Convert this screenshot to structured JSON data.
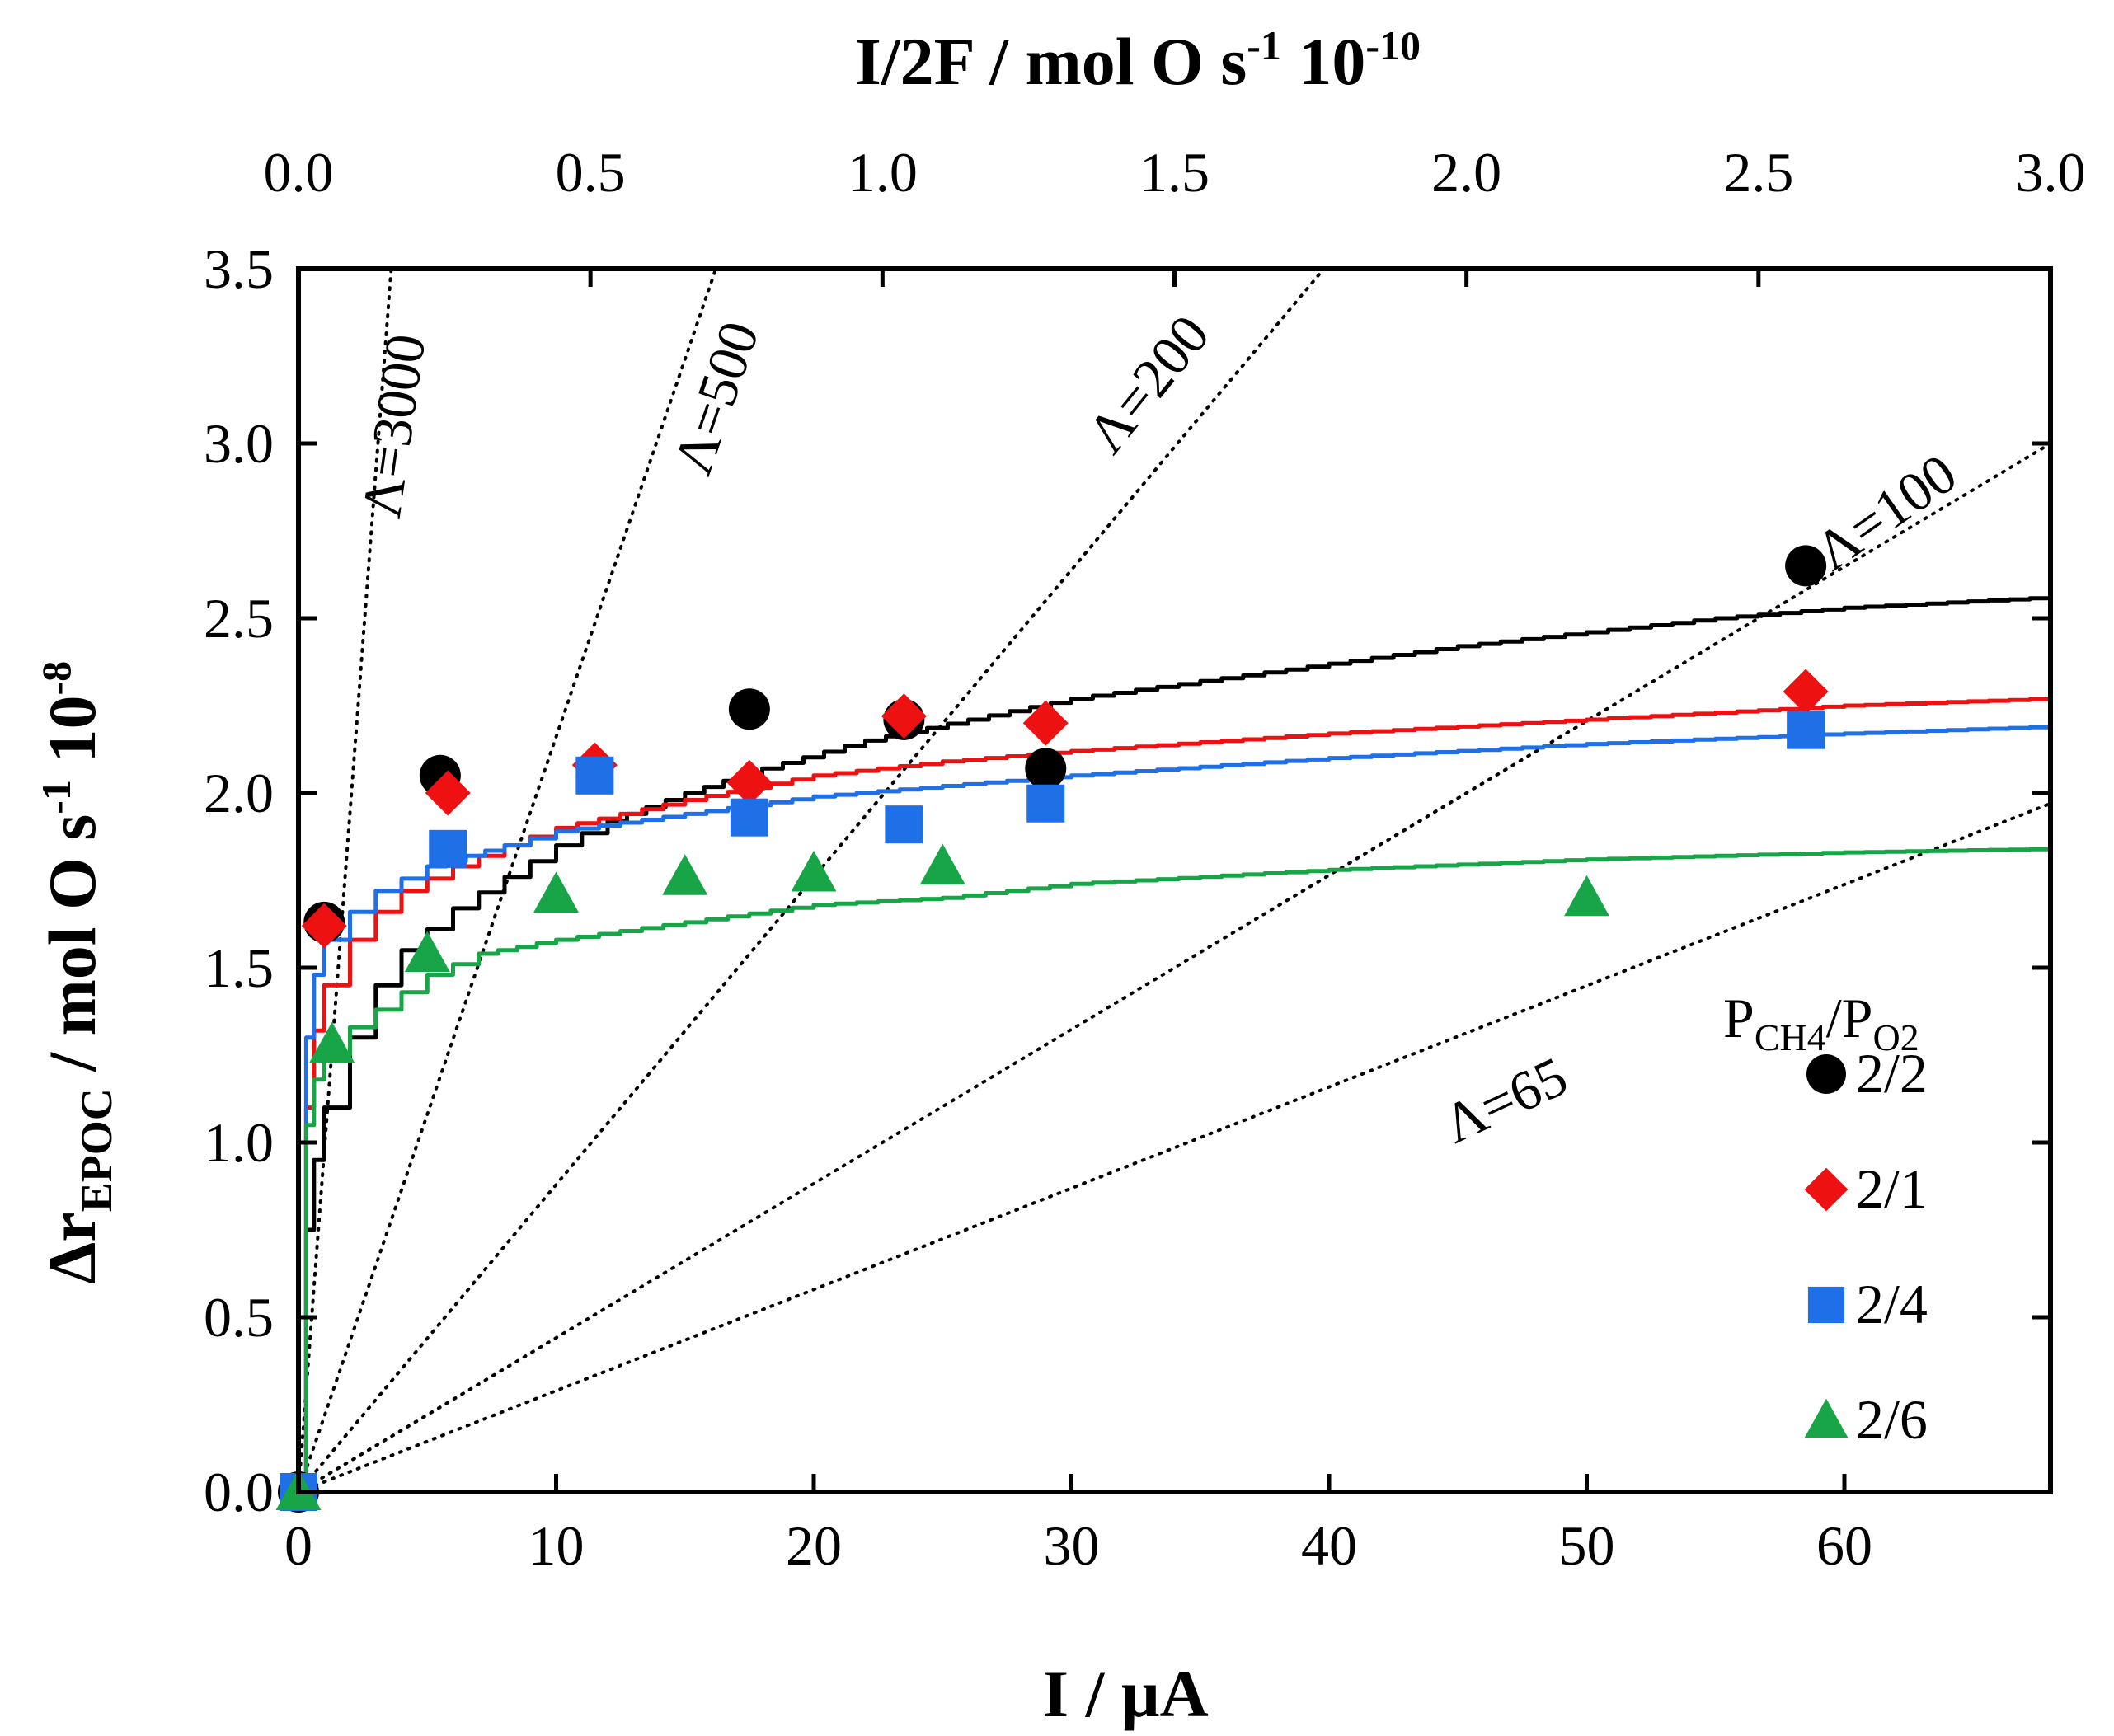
{
  "chart_data": {
    "type": "scatter",
    "xlabel": "I / μA",
    "x2label_main": "I/2F  / mol O s",
    "x2label_exp1": "-1",
    "x2label_mid": " 10",
    "x2label_exp2": "-10",
    "ylabel_delta": "Δr",
    "ylabel_sub": "EPOC",
    "ylabel_main": " /  mol O s",
    "ylabel_exp1": "-1",
    "ylabel_mid": " 10",
    "ylabel_exp2": "-8",
    "xlim": [
      0,
      68
    ],
    "ylim": [
      0,
      3.5
    ],
    "x2lim": [
      0,
      3.0
    ],
    "x_ticks": [
      0,
      10,
      20,
      30,
      40,
      50,
      60
    ],
    "x_tick_labels": [
      "0",
      "10",
      "20",
      "30",
      "40",
      "50",
      "60"
    ],
    "y_ticks": [
      0,
      0.5,
      1.0,
      1.5,
      2.0,
      2.5,
      3.0,
      3.5
    ],
    "y_tick_labels": [
      "0.0",
      "0.5",
      "1.0",
      "1.5",
      "2.0",
      "2.5",
      "3.0",
      "3.5"
    ],
    "x2_ticks": [
      0,
      0.5,
      1.0,
      1.5,
      2.0,
      2.5,
      3.0
    ],
    "x2_tick_labels": [
      "0.0",
      "0.5",
      "1.0",
      "1.5",
      "2.0",
      "2.5",
      "3.0"
    ],
    "legend_title_P1": "P",
    "legend_title_sub1": "CH4",
    "legend_title_slash": "/P",
    "legend_title_sub2": "O2",
    "lambda_lines": [
      {
        "label": "Λ=3000",
        "end_x": 3.6,
        "end_y": 3.5
      },
      {
        "label": "Λ=500",
        "end_x": 16.2,
        "end_y": 3.5
      },
      {
        "label": "Λ=200",
        "end_x": 39.8,
        "end_y": 3.5
      },
      {
        "label": "Λ=100",
        "end_x": 68,
        "end_y": 3.0
      },
      {
        "label": "Λ=65",
        "end_x": 68,
        "end_y": 1.97
      }
    ],
    "series": [
      {
        "name": "2/2",
        "color": "#000000",
        "marker": "circle",
        "points": [
          [
            0,
            0
          ],
          [
            1.0,
            1.63
          ],
          [
            5.5,
            2.05
          ],
          [
            17.5,
            2.24
          ],
          [
            23.5,
            2.21
          ],
          [
            29.0,
            2.07
          ],
          [
            58.5,
            2.65
          ]
        ],
        "fit": [
          [
            0,
            0
          ],
          [
            0.3,
            0.75
          ],
          [
            0.6,
            0.95
          ],
          [
            1.0,
            1.1
          ],
          [
            2,
            1.3
          ],
          [
            3,
            1.45
          ],
          [
            4,
            1.55
          ],
          [
            5,
            1.61
          ],
          [
            6,
            1.67
          ],
          [
            8,
            1.76
          ],
          [
            10,
            1.85
          ],
          [
            12,
            1.92
          ],
          [
            15,
            2.0
          ],
          [
            18,
            2.07
          ],
          [
            22,
            2.15
          ],
          [
            26,
            2.21
          ],
          [
            30,
            2.27
          ],
          [
            35,
            2.32
          ],
          [
            40,
            2.37
          ],
          [
            45,
            2.42
          ],
          [
            50,
            2.46
          ],
          [
            55,
            2.5
          ],
          [
            60,
            2.53
          ],
          [
            68,
            2.56
          ]
        ]
      },
      {
        "name": "2/1",
        "color": "#ee1111",
        "marker": "diamond",
        "points": [
          [
            1.0,
            1.62
          ],
          [
            5.8,
            2.0
          ],
          [
            11.5,
            2.08
          ],
          [
            17.5,
            2.03
          ],
          [
            23.5,
            2.22
          ],
          [
            29.0,
            2.2
          ],
          [
            58.5,
            2.29
          ]
        ],
        "fit": [
          [
            0,
            0
          ],
          [
            0.3,
            1.1
          ],
          [
            0.6,
            1.32
          ],
          [
            1.0,
            1.45
          ],
          [
            2,
            1.58
          ],
          [
            3,
            1.66
          ],
          [
            4,
            1.72
          ],
          [
            6,
            1.79
          ],
          [
            8,
            1.85
          ],
          [
            10,
            1.9
          ],
          [
            15,
            1.98
          ],
          [
            20,
            2.05
          ],
          [
            25,
            2.09
          ],
          [
            30,
            2.12
          ],
          [
            40,
            2.17
          ],
          [
            50,
            2.21
          ],
          [
            60,
            2.25
          ],
          [
            68,
            2.27
          ]
        ]
      },
      {
        "name": "2/4",
        "color": "#1f6fe6",
        "marker": "square",
        "points": [
          [
            0,
            0
          ],
          [
            5.8,
            1.84
          ],
          [
            11.5,
            2.05
          ],
          [
            17.5,
            1.93
          ],
          [
            23.5,
            1.91
          ],
          [
            29.0,
            1.97
          ],
          [
            58.5,
            2.18
          ]
        ],
        "fit": [
          [
            0,
            0
          ],
          [
            0.3,
            1.3
          ],
          [
            0.6,
            1.48
          ],
          [
            1.0,
            1.58
          ],
          [
            2,
            1.66
          ],
          [
            3,
            1.72
          ],
          [
            5,
            1.79
          ],
          [
            8,
            1.85
          ],
          [
            10,
            1.89
          ],
          [
            15,
            1.94
          ],
          [
            20,
            1.99
          ],
          [
            25,
            2.02
          ],
          [
            30,
            2.05
          ],
          [
            40,
            2.1
          ],
          [
            50,
            2.14
          ],
          [
            60,
            2.17
          ],
          [
            68,
            2.19
          ]
        ]
      },
      {
        "name": "2/6",
        "color": "#17a548",
        "marker": "triangle",
        "points": [
          [
            0,
            0
          ],
          [
            1.3,
            1.28
          ],
          [
            5.0,
            1.54
          ],
          [
            10.0,
            1.71
          ],
          [
            15.0,
            1.76
          ],
          [
            20.0,
            1.77
          ],
          [
            25.0,
            1.79
          ],
          [
            50.0,
            1.7
          ]
        ],
        "fit": [
          [
            0,
            0
          ],
          [
            0.3,
            1.05
          ],
          [
            0.6,
            1.18
          ],
          [
            1.0,
            1.25
          ],
          [
            2,
            1.33
          ],
          [
            3,
            1.38
          ],
          [
            5,
            1.48
          ],
          [
            7,
            1.54
          ],
          [
            10,
            1.58
          ],
          [
            15,
            1.63
          ],
          [
            20,
            1.68
          ],
          [
            25,
            1.7
          ],
          [
            30,
            1.74
          ],
          [
            40,
            1.78
          ],
          [
            50,
            1.81
          ],
          [
            60,
            1.83
          ],
          [
            68,
            1.84
          ]
        ]
      }
    ]
  }
}
